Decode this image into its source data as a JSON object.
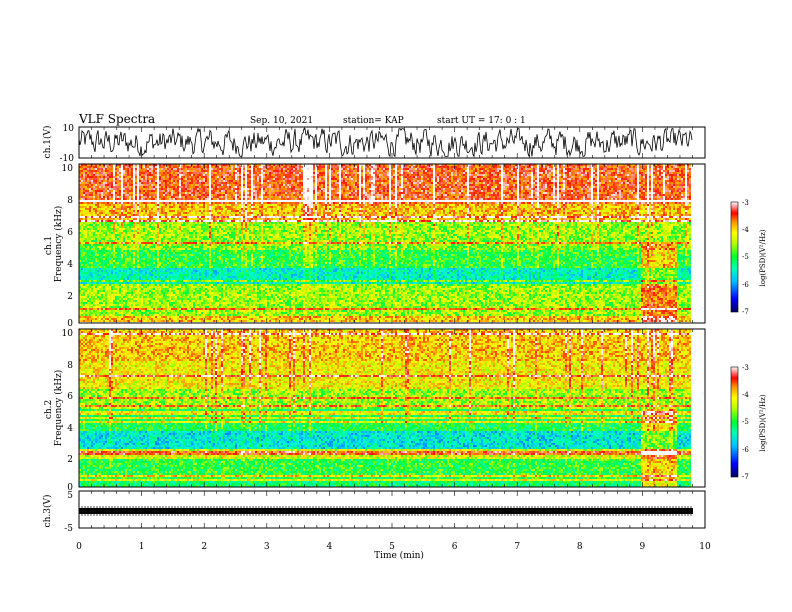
{
  "header": {
    "title": "VLF Spectra",
    "date": "Sep. 10, 2021",
    "station": "station= KAP",
    "start": "start  UT =   17: 0  : 1"
  },
  "chart_data": [
    {
      "panel": "ch1-waveform",
      "type": "line",
      "ylabel": "ch.1(V)",
      "ylim": [
        -10,
        10
      ],
      "yticks": [
        "10",
        "-10"
      ],
      "xlim": [
        0,
        9.8
      ],
      "description_note": "noisy waveform oscillating roughly between -6 and +6 V"
    },
    {
      "panel": "ch1-spectrogram",
      "type": "heatmap",
      "ylabel": "ch.1\nFrequency  (kHz)",
      "ylim": [
        0,
        10
      ],
      "yticks": [
        "10",
        "8",
        "6",
        "4",
        "2",
        "0"
      ],
      "xlim": [
        0,
        9.8
      ],
      "bands": [
        {
          "from": 0.0,
          "to": 0.5,
          "level": -4.0
        },
        {
          "from": 0.5,
          "to": 2.3,
          "level": -4.6
        },
        {
          "from": 2.3,
          "to": 3.5,
          "level": -5.6
        },
        {
          "from": 3.5,
          "to": 4.6,
          "level": -5.0
        },
        {
          "from": 4.6,
          "to": 5.3,
          "level": -4.7
        },
        {
          "from": 5.3,
          "to": 6.3,
          "level": -4.6
        },
        {
          "from": 6.3,
          "to": 7.5,
          "level": -4.0
        },
        {
          "from": 7.5,
          "to": 10.0,
          "level": -3.5
        }
      ],
      "colorbar": {
        "label": "log(PSD)(V²/Hz)",
        "ticks": [
          "-3",
          "-4",
          "-5",
          "-6",
          "-7"
        ],
        "range": [
          -7,
          -3
        ]
      }
    },
    {
      "panel": "ch2-spectrogram",
      "type": "heatmap",
      "ylabel": "ch.2\nFrequency  (kHz)",
      "ylim": [
        0,
        10
      ],
      "yticks": [
        "10",
        "8",
        "6",
        "4",
        "2",
        "0"
      ],
      "xlim": [
        0,
        9.8
      ],
      "bands": [
        {
          "from": 0.0,
          "to": 0.5,
          "level": -5.2
        },
        {
          "from": 0.5,
          "to": 1.8,
          "level": -5.0
        },
        {
          "from": 1.8,
          "to": 2.4,
          "level": -4.4
        },
        {
          "from": 2.4,
          "to": 3.6,
          "level": -5.7
        },
        {
          "from": 3.6,
          "to": 5.0,
          "level": -5.1
        },
        {
          "from": 5.0,
          "to": 6.2,
          "level": -4.6
        },
        {
          "from": 6.2,
          "to": 8.0,
          "level": -4.2
        },
        {
          "from": 8.0,
          "to": 10.0,
          "level": -4.0
        }
      ],
      "colorbar": {
        "label": "log(PSD)(V²/Hz)",
        "ticks": [
          "-3",
          "-4",
          "-5",
          "-6",
          "-7"
        ],
        "range": [
          -7,
          -3
        ]
      }
    },
    {
      "panel": "ch3-waveform",
      "type": "line",
      "ylabel": "ch.3(V)",
      "ylim": [
        -5,
        5
      ],
      "yticks": [
        "5",
        "-5"
      ],
      "xlim": [
        0,
        9.8
      ],
      "description_note": "dense signal band near -1.5 V"
    }
  ],
  "xaxis": {
    "label": "Time  (min)",
    "ticks": [
      "0",
      "1",
      "2",
      "3",
      "4",
      "5",
      "6",
      "7",
      "8",
      "9",
      "10"
    ]
  },
  "colors": {
    "scale": [
      "#000070",
      "#0000ff",
      "#00b0ff",
      "#00ffd0",
      "#00ff40",
      "#90ff00",
      "#ffff00",
      "#ffa000",
      "#ff2000",
      "#ff0000",
      "#ffffff"
    ]
  }
}
